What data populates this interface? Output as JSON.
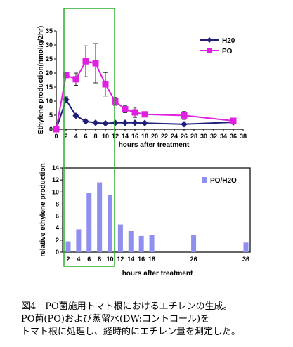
{
  "chart_data": [
    {
      "type": "line",
      "xlabel": "hours after treatment",
      "ylabel": "Ethylene production(nmol/g/2hr)",
      "xlim": [
        0,
        38
      ],
      "ylim": [
        0,
        35
      ],
      "x_ticks": [
        0,
        2,
        4,
        6,
        8,
        10,
        12,
        14,
        16,
        18,
        20,
        22,
        24,
        26,
        28,
        30,
        32,
        34,
        36,
        38
      ],
      "y_ticks": [
        0,
        5,
        10,
        15,
        20,
        25,
        30,
        35
      ],
      "grid": false,
      "legend": "top-right",
      "x": [
        0,
        2,
        4,
        6,
        8,
        10,
        12,
        14,
        16,
        18,
        26,
        36
      ],
      "series": [
        {
          "name": "H20",
          "color": "#1f1f7a",
          "marker": "diamond",
          "values": [
            0,
            10.5,
            4.8,
            2.8,
            2.3,
            2.1,
            2.3,
            2.3,
            2.3,
            2.2,
            1.8,
            2.5
          ],
          "errors": [
            0.3,
            1.0,
            0.5,
            0.4,
            0.3,
            0.3,
            0.3,
            0.3,
            0.3,
            0.3,
            0.3,
            0.4
          ]
        },
        {
          "name": "PO",
          "color": "#e020e0",
          "marker": "square",
          "values": [
            0,
            19.3,
            17.8,
            24.2,
            23.5,
            16,
            9.9,
            7.1,
            6,
            5.3,
            4.9,
            3
          ],
          "errors": [
            0.3,
            0.6,
            2.2,
            5.5,
            7,
            4.2,
            1.4,
            1.2,
            1.8,
            0.5,
            1.4,
            0.8
          ]
        }
      ]
    },
    {
      "type": "bar",
      "ylabel": "relative ethylene production",
      "xlabel": "hours after treatment",
      "ylim": [
        0,
        14
      ],
      "y_ticks": [
        0,
        2,
        4,
        6,
        8,
        10,
        12,
        14
      ],
      "grid": false,
      "legend": "top-right",
      "x_tick_labels": [
        2,
        4,
        6,
        8,
        10,
        12,
        14,
        16,
        18,
        26,
        36
      ],
      "x": [
        2,
        4,
        6,
        8,
        10,
        12,
        14,
        16,
        18,
        26,
        36
      ],
      "series": [
        {
          "name": "PO/H2O",
          "color": "#8f8ff0",
          "values": [
            1.8,
            3.8,
            9.8,
            11.6,
            9.5,
            4.6,
            3.5,
            2.7,
            2.8,
            2.8,
            1.6
          ]
        }
      ]
    }
  ],
  "caption": {
    "line1": "図4　PO菌施用トマト根におけるエチレンの生成。",
    "line2": "PO菌(PO)および蒸留水(DW:コントロール)を",
    "line3": "トマト根に処理し、経時的にエチレン量を測定した。"
  },
  "highlight_color": "#2fae2f"
}
